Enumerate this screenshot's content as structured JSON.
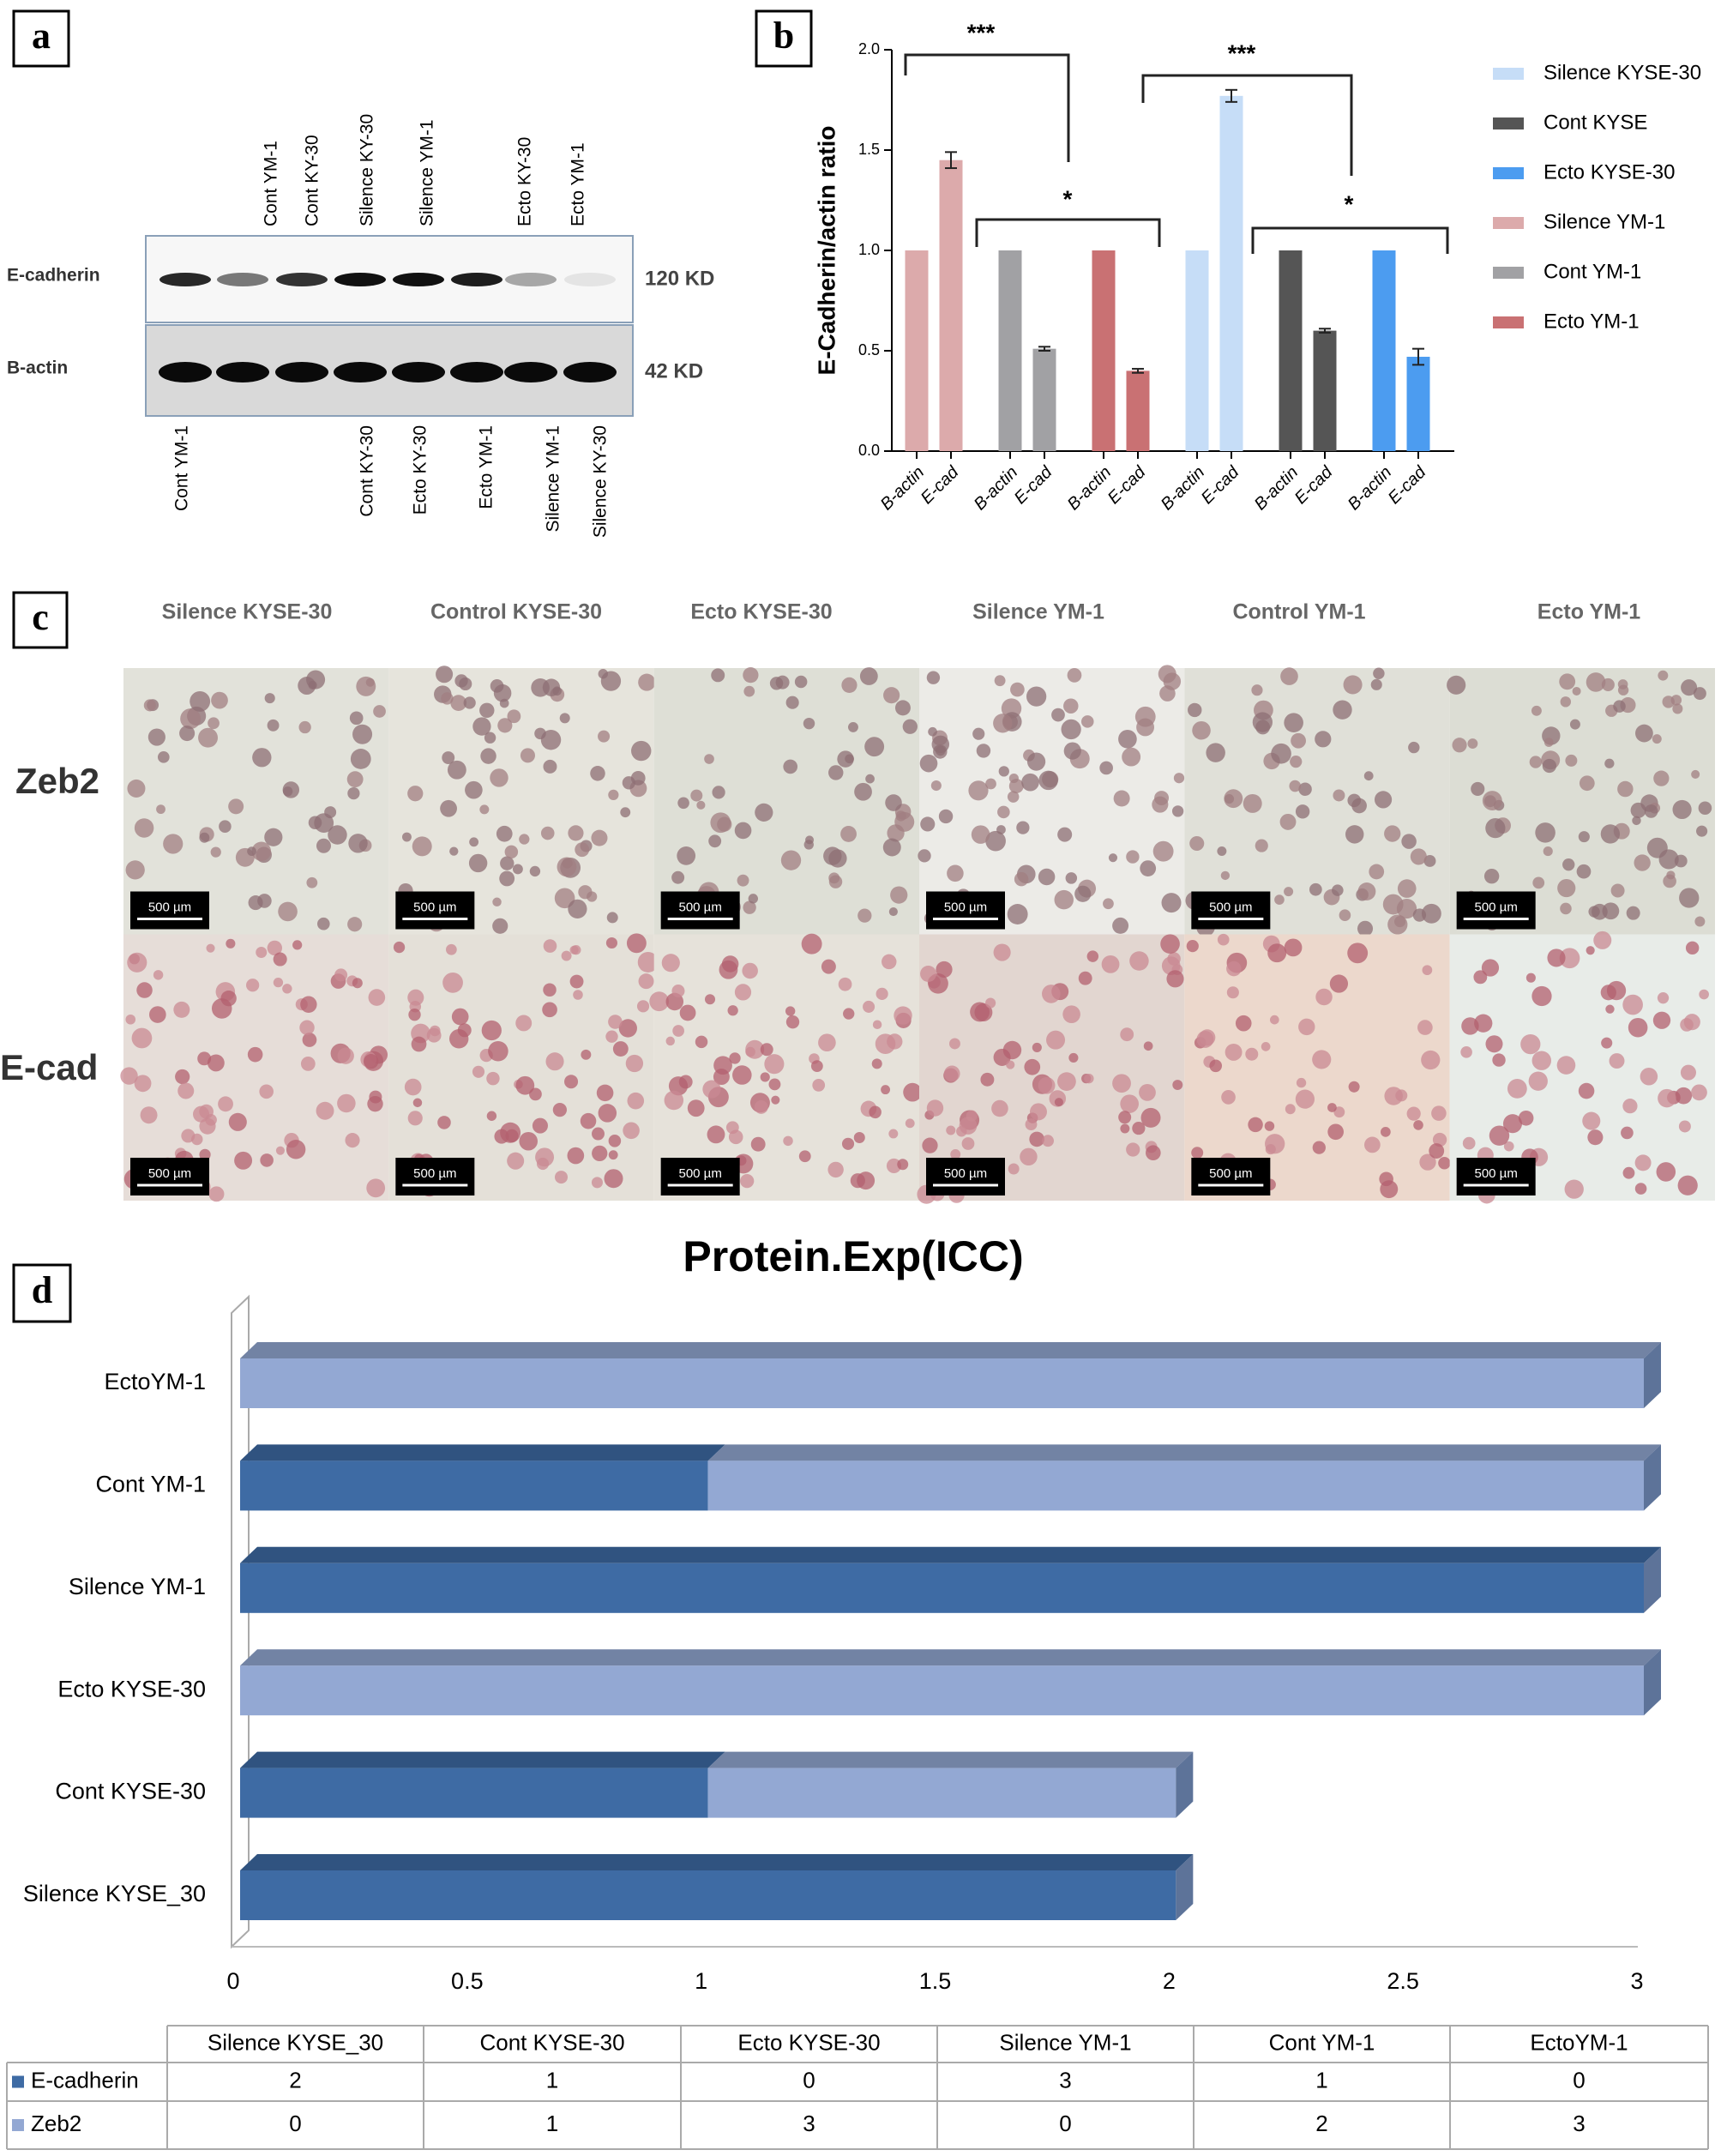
{
  "panel_labels": [
    "a",
    "b",
    "c",
    "d"
  ],
  "blot": {
    "top_labels": [
      "Cont YM-1",
      "Cont KY-30",
      "Silence KY-30",
      "Silence YM-1",
      "Ecto KY-30",
      "Ecto YM-1"
    ],
    "row_labels": [
      "E-cadherin",
      "B-actin"
    ],
    "sizes": [
      "120 KD",
      "42 KD"
    ],
    "bottom_labels": [
      "Cont YM-1",
      "Cont KY-30",
      "Ecto KY-30",
      "Ecto YM-1",
      "Silence YM-1",
      "Silence KY-30"
    ]
  },
  "micrographs": {
    "columns": [
      "Silence KYSE-30",
      "Control KYSE-30",
      "Ecto KYSE-30",
      "Silence YM-1",
      "Control YM-1",
      "Ecto YM-1"
    ],
    "rows": [
      "Zeb2",
      "E-cad"
    ],
    "scale_bar": "500 µm"
  },
  "chart_data": [
    {
      "type": "bar",
      "y_label": "E-Cadherin/actin ratio",
      "categories": [
        "B-actin",
        "E-cad",
        "B-actin",
        "E-cad",
        "B-actin",
        "E-cad",
        "B-actin",
        "E-cad",
        "B-actin",
        "E-cad",
        "B-actin",
        "E-cad"
      ],
      "series": [
        {
          "name": "Silence KYSE-30",
          "color": "#c6ddf7",
          "values": [
            null,
            null,
            null,
            null,
            null,
            null,
            1,
            1.77,
            null,
            null,
            null,
            null
          ],
          "errors": [
            null,
            null,
            null,
            null,
            null,
            null,
            null,
            0.03,
            null,
            null,
            null,
            null
          ]
        },
        {
          "name": "Cont KYSE",
          "color": "#555555",
          "values": [
            null,
            null,
            null,
            null,
            null,
            null,
            null,
            null,
            1,
            0.6,
            null,
            null
          ],
          "errors": [
            null,
            null,
            null,
            null,
            null,
            null,
            null,
            null,
            null,
            0.01,
            null,
            null
          ]
        },
        {
          "name": "Ecto KYSE-30",
          "color": "#4c9cf0",
          "values": [
            null,
            null,
            null,
            null,
            null,
            null,
            null,
            null,
            null,
            null,
            1,
            0.47
          ],
          "errors": [
            null,
            null,
            null,
            null,
            null,
            null,
            null,
            null,
            null,
            null,
            null,
            0.04
          ]
        },
        {
          "name": "Silence YM-1",
          "color": "#dcaaab",
          "values": [
            1,
            1.45,
            null,
            null,
            null,
            null,
            null,
            null,
            null,
            null,
            null,
            null
          ],
          "errors": [
            null,
            0.04,
            null,
            null,
            null,
            null,
            null,
            null,
            null,
            null,
            null,
            null
          ]
        },
        {
          "name": "Cont YM-1",
          "color": "#a1a1a4",
          "values": [
            null,
            null,
            1,
            0.51,
            null,
            null,
            null,
            null,
            null,
            null,
            null,
            null
          ],
          "errors": [
            null,
            null,
            null,
            0.01,
            null,
            null,
            null,
            null,
            null,
            null,
            null,
            null
          ]
        },
        {
          "name": "Ecto YM-1",
          "color": "#c97173",
          "values": [
            null,
            null,
            null,
            null,
            1,
            0.4,
            null,
            null,
            null,
            null,
            null,
            null
          ],
          "errors": [
            null,
            null,
            null,
            null,
            null,
            0.01,
            null,
            null,
            null,
            null,
            null,
            null
          ]
        }
      ],
      "ylim": [
        0,
        2
      ],
      "yticks": [
        {
          "value": 0,
          "label": "0.0"
        },
        0.5,
        {
          "value": 1,
          "label": "1.0"
        },
        1.5,
        {
          "value": 2,
          "label": "2.0"
        }
      ],
      "annotations": [
        "***",
        "*",
        "***",
        "*"
      ]
    },
    {
      "type": "bar",
      "horizontal": true,
      "stacked": true,
      "title": "Protein.Exp(ICC)",
      "categories": [
        "Silence KYSE_30",
        "Cont KYSE-30",
        "Ecto KYSE-30",
        "Silence YM-1",
        "Cont YM-1",
        "EctoYM-1"
      ],
      "series": [
        {
          "name": "E-cadherin",
          "color": "#3e6ba4",
          "values": [
            2,
            1,
            0,
            3,
            1,
            0
          ]
        },
        {
          "name": "Zeb2",
          "color": "#93a8d3",
          "values": [
            0,
            1,
            3,
            0,
            2,
            3
          ]
        }
      ],
      "xlim": [
        0,
        3
      ],
      "xticks": [
        0,
        0.5,
        1,
        1.5,
        2,
        2.5,
        3
      ]
    }
  ]
}
